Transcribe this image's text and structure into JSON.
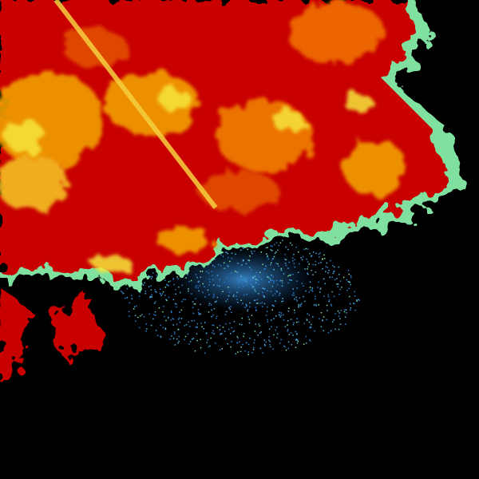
{
  "image": {
    "kind": "radar-reflectivity",
    "colors": {
      "background": "#000000",
      "heavy": "#c80000",
      "strong": "#e23a00",
      "moderate": "#f2a000",
      "light": "#f5e63a",
      "edge": "#7fe0a0",
      "weak": "#2a7fd0",
      "weak_light": "#4fb0e0"
    },
    "speckle": {
      "count": 900,
      "seed": 7
    }
  }
}
